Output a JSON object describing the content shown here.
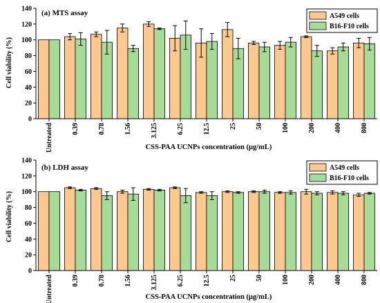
{
  "colors": {
    "series_a": "#fbc890",
    "series_b": "#a6dc98",
    "axis": "#000000"
  },
  "chart_data": [
    {
      "type": "bar",
      "title": "(a) MTS assay",
      "xlabel": "CSS-PAA UCNPs concentration (μg/mL)",
      "ylabel": "Cell viability (%)",
      "ylim": [
        0,
        140
      ],
      "yticks": [
        "0",
        "20",
        "40",
        "60",
        "80",
        "100",
        "120",
        "140"
      ],
      "categories": [
        "Untreated",
        "0.39",
        "0.78",
        "1.56",
        "3.125",
        "6.25",
        "12.5",
        "25",
        "50",
        "100",
        "200",
        "400",
        "800"
      ],
      "legend_position": "top-right",
      "series": [
        {
          "name": "A549 cells",
          "color": "#fbc890",
          "values": [
            100,
            104,
            107,
            115,
            120,
            102,
            96,
            113,
            96,
            93,
            104,
            86,
            96
          ],
          "errors": [
            0,
            4,
            3,
            5,
            3,
            16,
            18,
            9,
            2,
            5,
            1,
            4,
            6
          ]
        },
        {
          "name": "B16-F10 cells",
          "color": "#a6dc98",
          "values": [
            100,
            101,
            97,
            89,
            114,
            106,
            98,
            89,
            91,
            97,
            86,
            91,
            95
          ],
          "errors": [
            0,
            8,
            15,
            4,
            1,
            18,
            10,
            13,
            6,
            6,
            7,
            5,
            8
          ]
        }
      ]
    },
    {
      "type": "bar",
      "title": "(b) LDH assay",
      "xlabel": "CSS-PAA UCNPs concentration (μg/mL)",
      "ylabel": "Cell viability (%)",
      "ylim": [
        0,
        140
      ],
      "yticks": [
        "0",
        "20",
        "40",
        "60",
        "80",
        "100",
        "120",
        "140"
      ],
      "categories": [
        "Untreated",
        "0.39",
        "0.78",
        "1.56",
        "3.125",
        "6.25",
        "12.5",
        "25",
        "50",
        "100",
        "200",
        "400",
        "800"
      ],
      "legend_position": "top-right",
      "series": [
        {
          "name": "A549 cells",
          "color": "#fbc890",
          "values": [
            100,
            105,
            104,
            100,
            103,
            105,
            99,
            100,
            100,
            99,
            100,
            99,
            96
          ],
          "errors": [
            0,
            1,
            1,
            2,
            1,
            1,
            1,
            1,
            1,
            1,
            3,
            2,
            2
          ]
        },
        {
          "name": "B16-F10 cells",
          "color": "#a6dc98",
          "values": [
            100,
            102,
            95,
            97,
            102,
            95,
            95,
            99,
            100,
            99,
            98,
            98,
            98
          ],
          "errors": [
            0,
            1,
            5,
            8,
            1,
            9,
            5,
            1,
            2,
            2,
            2,
            2,
            1
          ]
        }
      ]
    }
  ]
}
